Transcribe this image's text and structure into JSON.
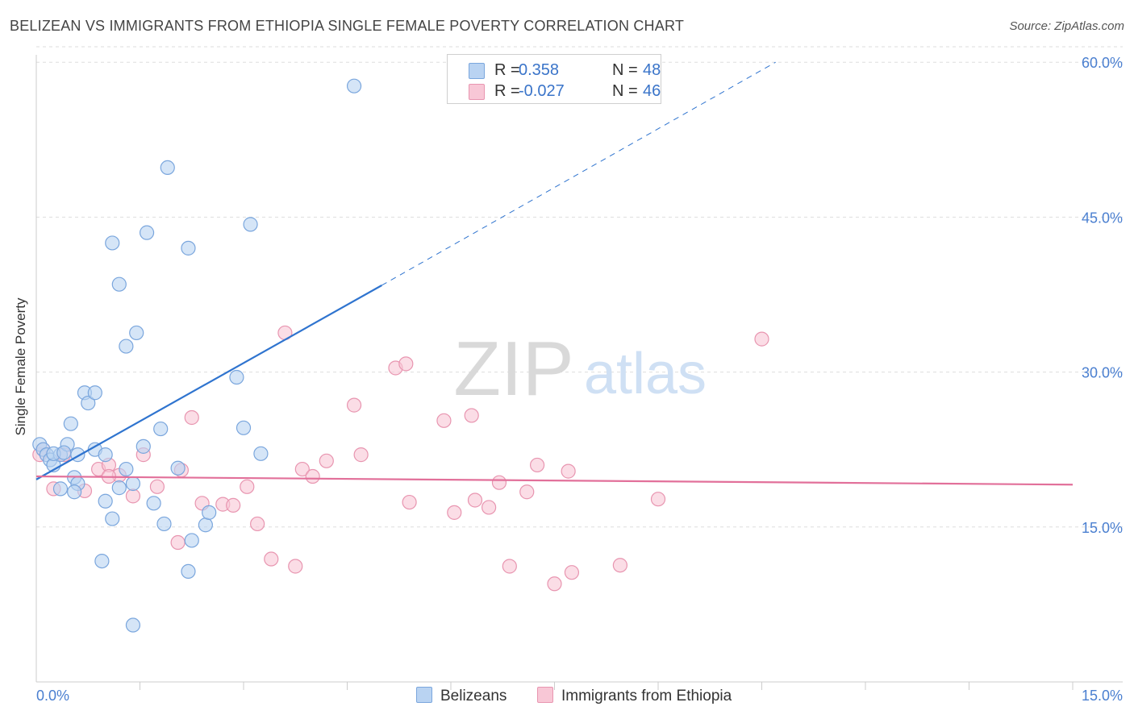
{
  "title": "BELIZEAN VS IMMIGRANTS FROM ETHIOPIA SINGLE FEMALE POVERTY CORRELATION CHART",
  "source": "Source: ZipAtlas.com",
  "watermark": {
    "zip": "ZIP",
    "atlas": "atlas"
  },
  "legend": {
    "r_label": "R =",
    "n_label": "N =",
    "series": [
      {
        "r": "0.358",
        "n": "48"
      },
      {
        "r": "-0.027",
        "n": "46"
      }
    ]
  },
  "bottom_legend": [
    "Belizeans",
    "Immigrants from Ethiopia"
  ],
  "colors": {
    "blue_fill": "#b9d3f2",
    "blue_stroke": "#7aa6dd",
    "blue_line": "#2f74cf",
    "pink_fill": "#f8c7d6",
    "pink_stroke": "#e895b0",
    "pink_line": "#e2709a",
    "tick_label": "#4a7fd0",
    "grid": "#dddddd"
  },
  "chart_data": {
    "type": "scatter",
    "title": "BELIZEAN VS IMMIGRANTS FROM ETHIOPIA SINGLE FEMALE POVERTY CORRELATION CHART",
    "xlabel": "",
    "ylabel": "Single Female Poverty",
    "xlim": [
      0,
      15
    ],
    "ylim": [
      0,
      61.5
    ],
    "x_tick_labels": [
      "0.0%",
      "15.0%"
    ],
    "y_ticks": [
      15,
      30,
      45,
      60
    ],
    "y_tick_labels": [
      "15.0%",
      "30.0%",
      "45.0%",
      "60.0%"
    ],
    "series": [
      {
        "name": "Belizeans",
        "r": 0.358,
        "n": 48,
        "trend": {
          "x0": 0.0,
          "y0": 19.6,
          "x1": 5.0,
          "y1": 38.4,
          "dashed_to_x": 10.7,
          "dashed_to_y": 60.0
        },
        "points": [
          [
            0.05,
            23.0
          ],
          [
            0.1,
            22.5
          ],
          [
            0.15,
            22.0
          ],
          [
            0.2,
            21.5
          ],
          [
            0.25,
            21.0
          ],
          [
            0.35,
            22.0
          ],
          [
            0.45,
            23.0
          ],
          [
            0.5,
            25.0
          ],
          [
            0.6,
            22.0
          ],
          [
            0.7,
            28.0
          ],
          [
            0.75,
            27.0
          ],
          [
            0.85,
            28.0
          ],
          [
            0.85,
            22.5
          ],
          [
            1.0,
            22.0
          ],
          [
            1.1,
            42.5
          ],
          [
            1.2,
            38.5
          ],
          [
            1.3,
            32.5
          ],
          [
            1.45,
            33.8
          ],
          [
            1.55,
            22.8
          ],
          [
            1.6,
            43.5
          ],
          [
            1.7,
            17.3
          ],
          [
            1.8,
            24.5
          ],
          [
            1.85,
            15.3
          ],
          [
            1.9,
            49.8
          ],
          [
            2.05,
            20.7
          ],
          [
            2.2,
            10.7
          ],
          [
            2.2,
            42.0
          ],
          [
            2.25,
            13.7
          ],
          [
            2.45,
            15.2
          ],
          [
            2.5,
            16.4
          ],
          [
            2.9,
            29.5
          ],
          [
            3.0,
            24.6
          ],
          [
            3.1,
            44.3
          ],
          [
            3.25,
            22.1
          ],
          [
            4.6,
            57.7
          ],
          [
            1.0,
            17.5
          ],
          [
            1.1,
            15.8
          ],
          [
            1.2,
            18.8
          ],
          [
            1.3,
            20.6
          ],
          [
            1.4,
            19.2
          ],
          [
            1.4,
            5.5
          ],
          [
            0.95,
            11.7
          ],
          [
            0.55,
            19.8
          ],
          [
            0.6,
            19.2
          ],
          [
            0.35,
            18.7
          ],
          [
            0.55,
            18.4
          ],
          [
            0.25,
            22.1
          ],
          [
            0.4,
            22.2
          ]
        ]
      },
      {
        "name": "Immigrants from Ethiopia",
        "r": -0.027,
        "n": 46,
        "trend": {
          "x0": 0.0,
          "y0": 19.9,
          "x1": 15.0,
          "y1": 19.1
        },
        "points": [
          [
            0.05,
            22.0
          ],
          [
            0.25,
            18.7
          ],
          [
            0.4,
            22.0
          ],
          [
            0.7,
            18.5
          ],
          [
            0.9,
            20.6
          ],
          [
            1.05,
            21.0
          ],
          [
            1.2,
            20.0
          ],
          [
            1.4,
            18.0
          ],
          [
            1.55,
            22.0
          ],
          [
            1.75,
            18.9
          ],
          [
            2.1,
            20.5
          ],
          [
            2.05,
            13.5
          ],
          [
            2.25,
            25.6
          ],
          [
            2.4,
            17.3
          ],
          [
            2.7,
            17.2
          ],
          [
            2.85,
            17.1
          ],
          [
            3.05,
            18.9
          ],
          [
            3.2,
            15.3
          ],
          [
            3.4,
            11.9
          ],
          [
            3.6,
            33.8
          ],
          [
            3.75,
            11.2
          ],
          [
            3.85,
            20.6
          ],
          [
            4.0,
            19.9
          ],
          [
            4.2,
            21.4
          ],
          [
            4.6,
            26.8
          ],
          [
            4.7,
            22.0
          ],
          [
            5.2,
            30.4
          ],
          [
            5.35,
            30.8
          ],
          [
            5.4,
            17.4
          ],
          [
            5.9,
            25.3
          ],
          [
            6.05,
            16.4
          ],
          [
            6.3,
            25.8
          ],
          [
            6.35,
            17.6
          ],
          [
            6.55,
            16.9
          ],
          [
            6.7,
            19.3
          ],
          [
            6.85,
            11.2
          ],
          [
            7.1,
            18.4
          ],
          [
            7.25,
            21.0
          ],
          [
            7.5,
            9.5
          ],
          [
            7.7,
            20.4
          ],
          [
            7.75,
            10.6
          ],
          [
            8.45,
            11.3
          ],
          [
            9.0,
            17.7
          ],
          [
            10.5,
            33.2
          ],
          [
            0.1,
            22.5
          ],
          [
            1.05,
            19.9
          ]
        ]
      }
    ]
  }
}
